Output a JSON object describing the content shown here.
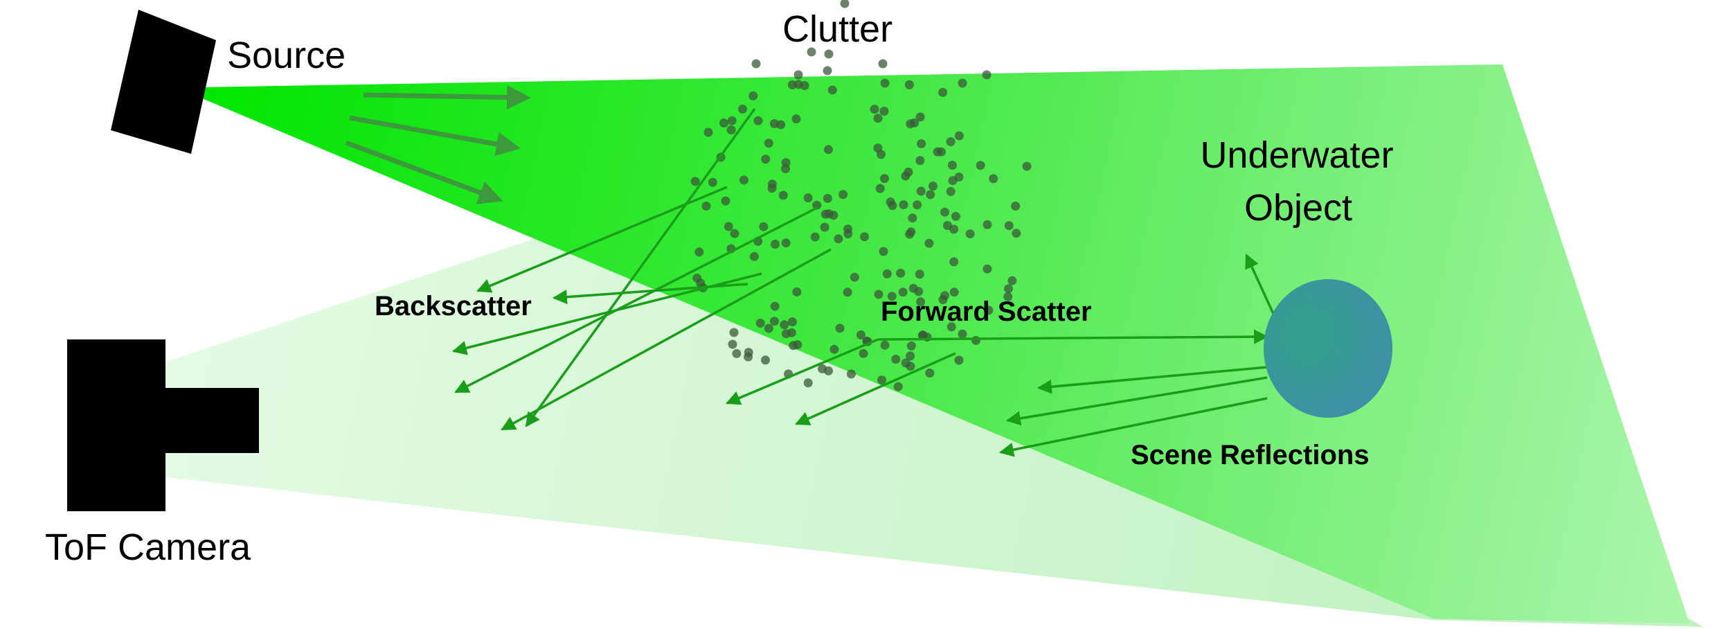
{
  "labels": {
    "source": "Source",
    "clutter": "Clutter",
    "object_line1": "Underwater",
    "object_line2": "Object",
    "backscatter": "Backscatter",
    "forward_scatter": "Forward Scatter",
    "scene_reflections": "Scene Reflections",
    "camera": "ToF Camera"
  },
  "colors": {
    "beam": "#2ee62e",
    "beam_dark": "#00e600",
    "camera_fov": "#cdf5cd",
    "arrows": "#1a9e1a",
    "source_arrows": "#3c9a3c",
    "particles": "#3a5a3a",
    "object": "#3d95a0",
    "devices": "#000000"
  }
}
